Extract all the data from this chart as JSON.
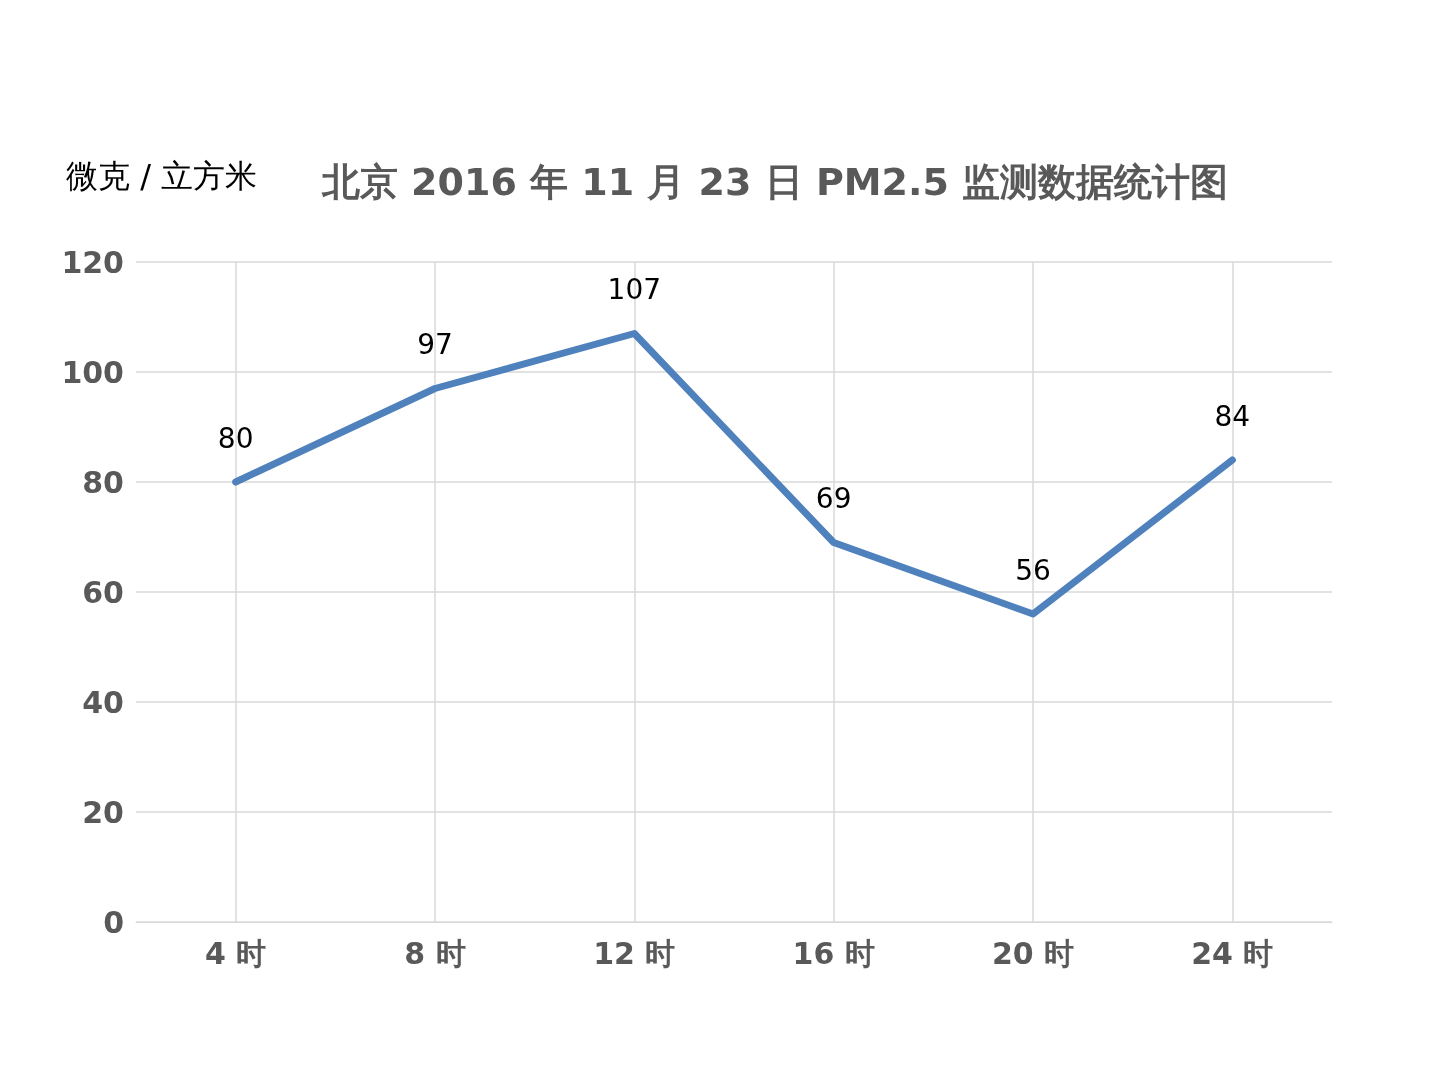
{
  "chart_data": {
    "type": "line",
    "title": "北京 2016 年 11 月 23 日 PM2.5 监测数据统计图",
    "ylabel": "微克 / 立方米",
    "categories": [
      "4 时",
      "8 时",
      "12 时",
      "16 时",
      "20 时",
      "24 时"
    ],
    "series": [
      {
        "color": "#4f81bd",
        "values": [
          80,
          97,
          107,
          69,
          56,
          84
        ]
      }
    ],
    "ylim": [
      0,
      120
    ],
    "yticks": [
      0,
      20,
      40,
      60,
      80,
      100,
      120
    ],
    "grid": true,
    "data_labels": true,
    "marker": "none",
    "line_style": "solid"
  }
}
